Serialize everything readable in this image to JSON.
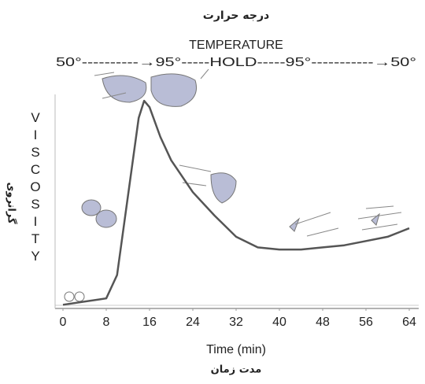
{
  "chart_data": {
    "type": "line",
    "title": "درجه حرارت",
    "subtitle": "TEMPERATURE",
    "annotation": "50°----------→95°-----HOLD-----95°-----------→50°",
    "y_label": "VISCOSITY",
    "y_label_alt": "گرانروی",
    "x_label": "Time (min)",
    "x_label_alt": "مدت زمان",
    "x": [
      0,
      8,
      10,
      12,
      14,
      15,
      16,
      18,
      20,
      24,
      28,
      32,
      36,
      40,
      44,
      48,
      52,
      56,
      60,
      64
    ],
    "series": [
      {
        "color": "#555555",
        "values": [
          1,
          4,
          15,
          52,
          89,
          97,
          94,
          80,
          69,
          54,
          43,
          33,
          28,
          27,
          27,
          28,
          29,
          31,
          33,
          37
        ]
      }
    ],
    "xlim": [
      0,
      64
    ],
    "xticks": [
      0,
      8,
      16,
      24,
      32,
      40,
      48,
      56,
      64
    ],
    "ylim": [
      0,
      100
    ],
    "grid": false
  }
}
